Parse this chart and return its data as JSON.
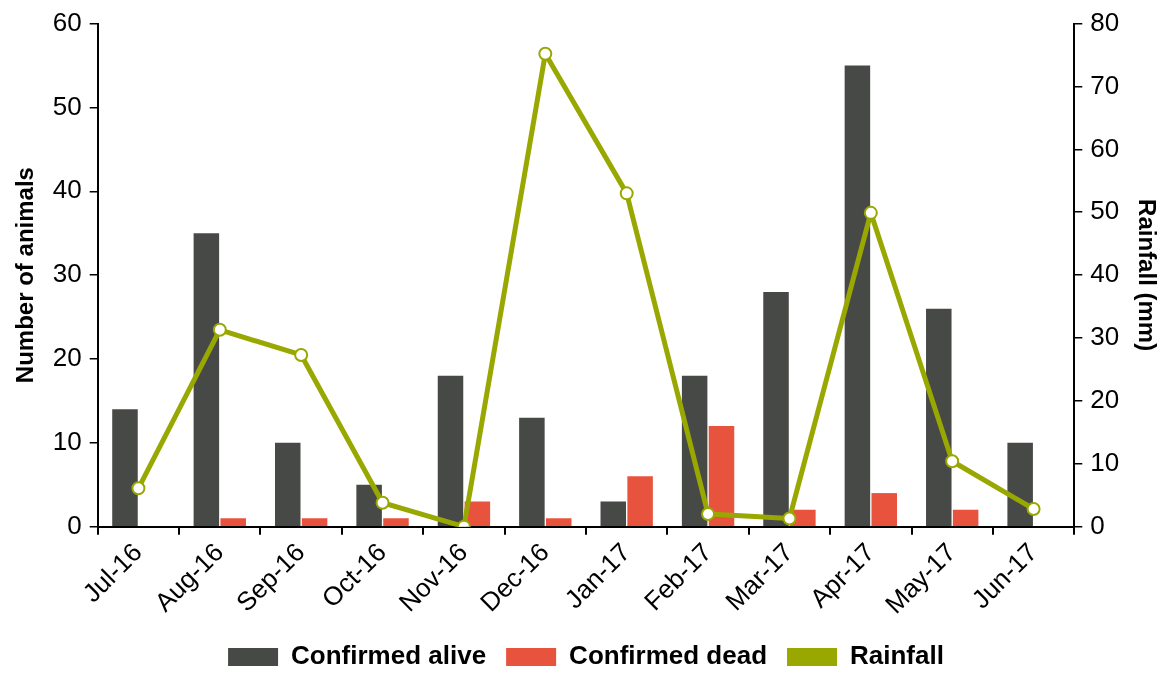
{
  "chart_data": {
    "type": "bar",
    "ylabel": "Number of animals",
    "y2label": "Rainfall (mm)",
    "categories": [
      "Jul-16",
      "Aug-16",
      "Sep-16",
      "Oct-16",
      "Nov-16",
      "Dec-16",
      "Jan-17",
      "Feb-17",
      "Mar-17",
      "Apr-17",
      "May-17",
      "Jun-17"
    ],
    "series": [
      {
        "name": "Confirmed alive",
        "color": "#474946",
        "values": [
          14,
          35,
          10,
          5,
          18,
          13,
          3,
          18,
          28,
          55,
          26,
          10
        ]
      },
      {
        "name": "Confirmed dead",
        "color": "#e8533e",
        "values": [
          0,
          1,
          1,
          1,
          3,
          1,
          6,
          12,
          2,
          4,
          2,
          0
        ]
      },
      {
        "name": "Rainfall",
        "type": "line",
        "axis": "y2",
        "color": "#99a800",
        "marker": "circle",
        "values": [
          6.1,
          31.3,
          27.3,
          3.8,
          0,
          75.2,
          53,
          2.0,
          1.3,
          49.9,
          10.4,
          2.8
        ]
      }
    ],
    "ylim": [
      0,
      60
    ],
    "yticks": [
      0,
      10,
      20,
      30,
      40,
      50,
      60
    ],
    "y2lim": [
      0,
      80
    ],
    "y2ticks": [
      0,
      10,
      20,
      30,
      40,
      50,
      60,
      70,
      80
    ],
    "grid": false,
    "legend": "bottom"
  }
}
